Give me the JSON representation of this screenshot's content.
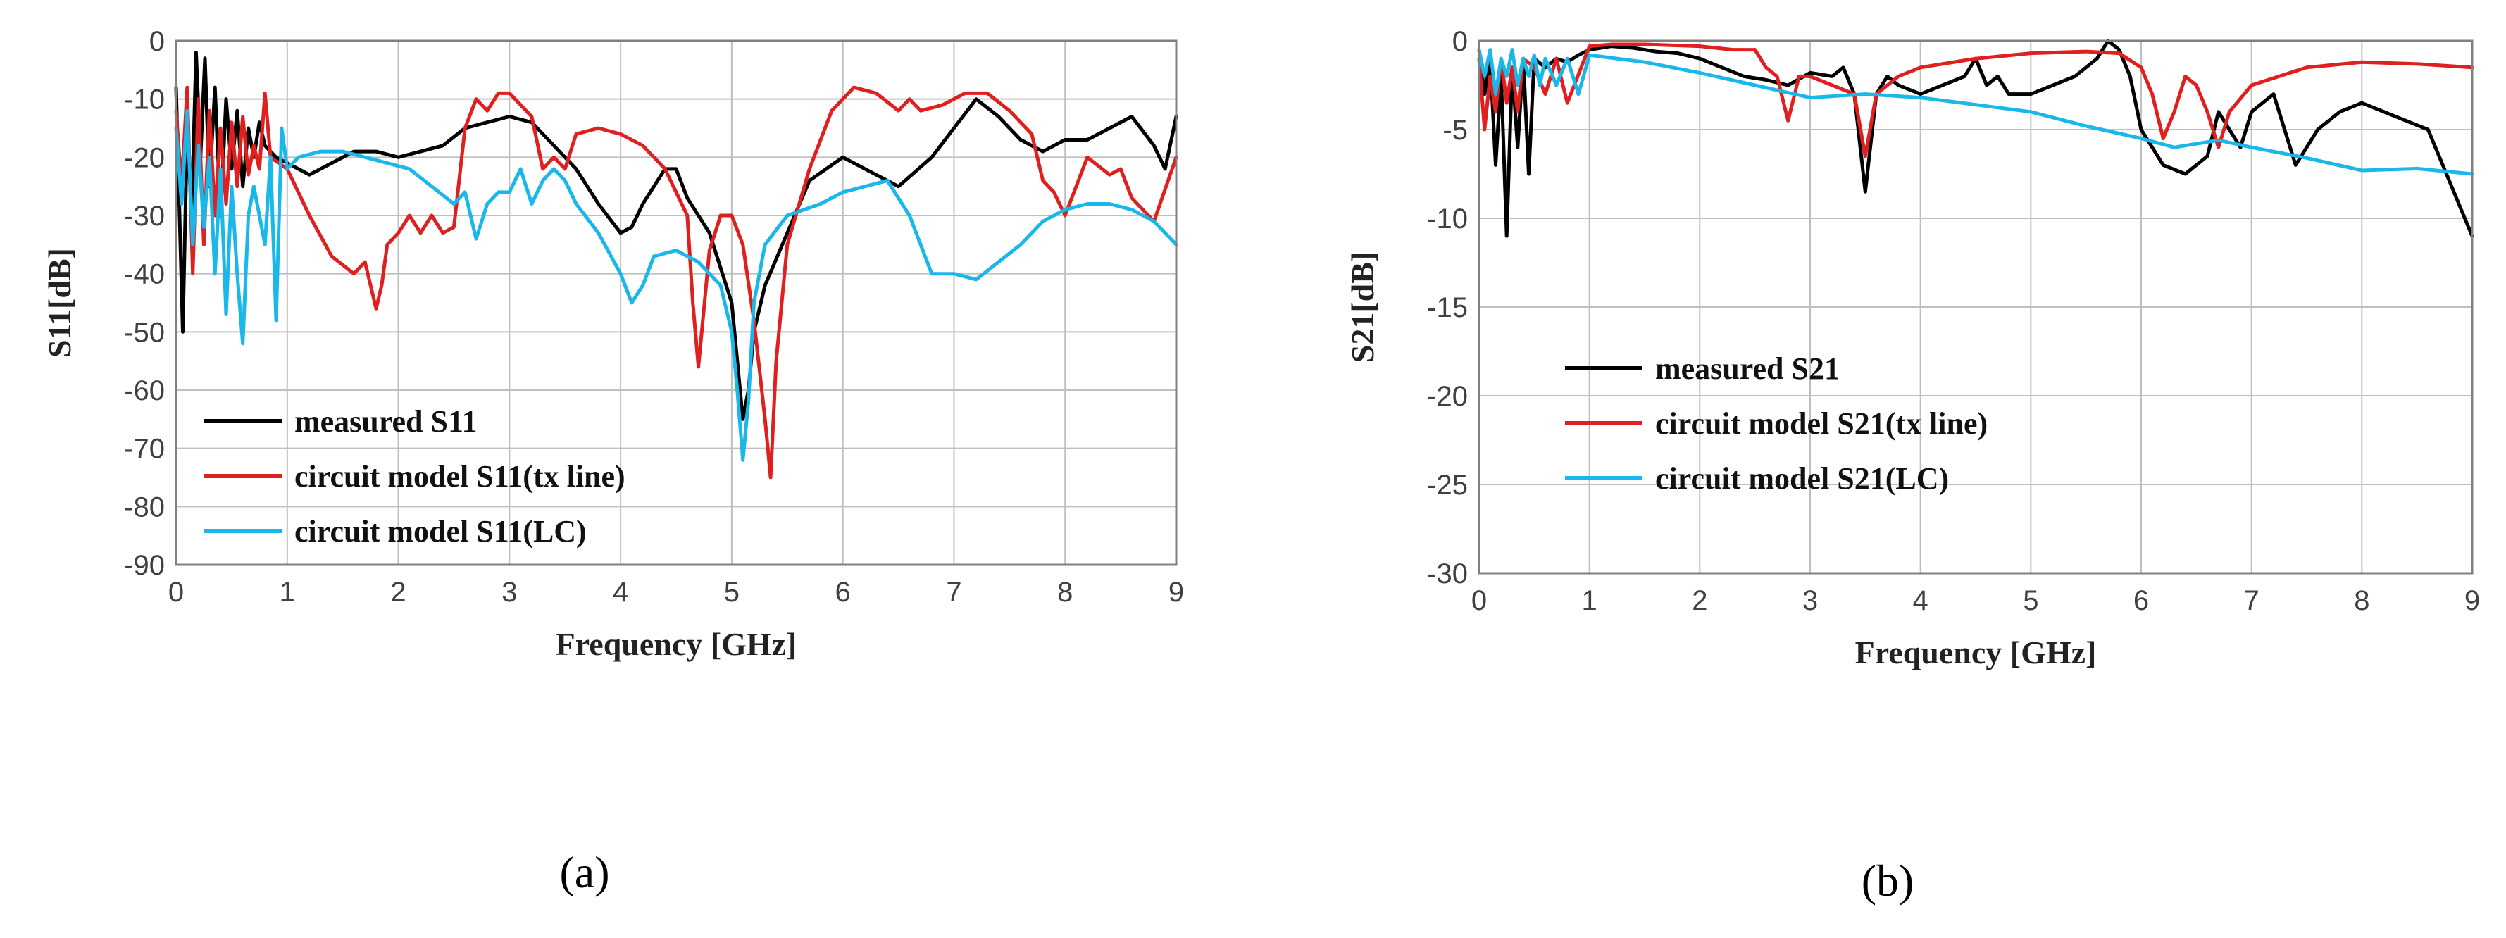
{
  "chart_data": [
    {
      "type": "line",
      "panel_label": "(a)",
      "xlabel": "Frequency [GHz]",
      "ylabel": "S11[dB]",
      "xlim": [
        0,
        9
      ],
      "ylim": [
        -90,
        0
      ],
      "xticks": [
        0,
        1,
        2,
        3,
        4,
        5,
        6,
        7,
        8,
        9
      ],
      "yticks": [
        0,
        -10,
        -20,
        -30,
        -40,
        -50,
        -60,
        -70,
        -80,
        -90
      ],
      "grid": true,
      "legend": "bottom-left",
      "series": [
        {
          "name": "measured S11",
          "color": "#000000",
          "x": [
            0,
            0.06,
            0.1,
            0.14,
            0.18,
            0.22,
            0.26,
            0.3,
            0.35,
            0.4,
            0.45,
            0.5,
            0.55,
            0.6,
            0.65,
            0.7,
            0.75,
            0.8,
            0.9,
            1.0,
            1.2,
            1.4,
            1.6,
            1.8,
            2.0,
            2.2,
            2.4,
            2.6,
            2.8,
            3.0,
            3.2,
            3.4,
            3.6,
            3.8,
            4.0,
            4.1,
            4.2,
            4.4,
            4.5,
            4.6,
            4.8,
            5.0,
            5.1,
            5.15,
            5.2,
            5.3,
            5.5,
            5.7,
            6.0,
            6.2,
            6.5,
            6.8,
            7.0,
            7.2,
            7.4,
            7.6,
            7.8,
            8.0,
            8.2,
            8.4,
            8.6,
            8.8,
            8.9,
            9.0
          ],
          "values": [
            -8,
            -50,
            -15,
            -30,
            -2,
            -20,
            -3,
            -25,
            -8,
            -30,
            -10,
            -22,
            -12,
            -25,
            -15,
            -20,
            -14,
            -18,
            -20,
            -21,
            -23,
            -21,
            -19,
            -19,
            -20,
            -19,
            -18,
            -15,
            -14,
            -13,
            -14,
            -18,
            -22,
            -28,
            -33,
            -32,
            -28,
            -22,
            -22,
            -27,
            -33,
            -45,
            -65,
            -60,
            -50,
            -42,
            -33,
            -24,
            -20,
            -22,
            -25,
            -20,
            -15,
            -10,
            -13,
            -17,
            -19,
            -17,
            -17,
            -15,
            -13,
            -18,
            -22,
            -13
          ]
        },
        {
          "name": "circuit model S11(tx line)",
          "color": "#e0201f",
          "x": [
            0,
            0.05,
            0.1,
            0.15,
            0.2,
            0.25,
            0.3,
            0.35,
            0.4,
            0.45,
            0.5,
            0.55,
            0.6,
            0.65,
            0.7,
            0.75,
            0.8,
            0.85,
            1.0,
            1.2,
            1.4,
            1.6,
            1.7,
            1.8,
            1.85,
            1.9,
            2.0,
            2.1,
            2.2,
            2.3,
            2.4,
            2.5,
            2.6,
            2.7,
            2.8,
            2.9,
            3.0,
            3.1,
            3.2,
            3.3,
            3.4,
            3.5,
            3.6,
            3.8,
            4.0,
            4.2,
            4.4,
            4.6,
            4.65,
            4.7,
            4.8,
            4.9,
            5.0,
            5.1,
            5.2,
            5.3,
            5.35,
            5.4,
            5.5,
            5.7,
            5.9,
            6.1,
            6.3,
            6.5,
            6.6,
            6.7,
            6.9,
            7.1,
            7.3,
            7.5,
            7.7,
            7.8,
            7.9,
            8.0,
            8.2,
            8.4,
            8.5,
            8.6,
            8.8,
            9.0
          ],
          "values": [
            -12,
            -25,
            -8,
            -40,
            -10,
            -35,
            -12,
            -30,
            -15,
            -28,
            -14,
            -25,
            -13,
            -23,
            -18,
            -22,
            -9,
            -20,
            -22,
            -30,
            -37,
            -40,
            -38,
            -46,
            -42,
            -35,
            -33,
            -30,
            -33,
            -30,
            -33,
            -32,
            -15,
            -10,
            -12,
            -9,
            -9,
            -11,
            -13,
            -22,
            -20,
            -22,
            -16,
            -15,
            -16,
            -18,
            -22,
            -30,
            -45,
            -56,
            -36,
            -30,
            -30,
            -35,
            -48,
            -65,
            -75,
            -55,
            -35,
            -22,
            -12,
            -8,
            -9,
            -12,
            -10,
            -12,
            -11,
            -9,
            -9,
            -12,
            -16,
            -24,
            -26,
            -30,
            -20,
            -23,
            -22,
            -27,
            -31,
            -20
          ]
        },
        {
          "name": "circuit model S11(LC)",
          "color": "#1ab8ea",
          "x": [
            0,
            0.05,
            0.1,
            0.15,
            0.2,
            0.25,
            0.3,
            0.35,
            0.4,
            0.45,
            0.5,
            0.55,
            0.6,
            0.65,
            0.7,
            0.8,
            0.85,
            0.9,
            0.95,
            1.0,
            1.1,
            1.3,
            1.5,
            1.7,
            1.9,
            2.1,
            2.3,
            2.5,
            2.6,
            2.7,
            2.8,
            2.9,
            3.0,
            3.1,
            3.2,
            3.3,
            3.4,
            3.5,
            3.6,
            3.8,
            4.0,
            4.1,
            4.2,
            4.3,
            4.5,
            4.7,
            4.9,
            5.0,
            5.05,
            5.1,
            5.15,
            5.2,
            5.3,
            5.5,
            5.8,
            6.0,
            6.2,
            6.4,
            6.6,
            6.8,
            7.0,
            7.2,
            7.4,
            7.6,
            7.8,
            8.0,
            8.2,
            8.4,
            8.6,
            8.8,
            9.0
          ],
          "values": [
            -15,
            -28,
            -12,
            -35,
            -18,
            -32,
            -20,
            -40,
            -22,
            -47,
            -25,
            -40,
            -52,
            -30,
            -25,
            -35,
            -20,
            -48,
            -15,
            -22,
            -20,
            -19,
            -19,
            -20,
            -21,
            -22,
            -25,
            -28,
            -26,
            -34,
            -28,
            -26,
            -26,
            -22,
            -28,
            -24,
            -22,
            -24,
            -28,
            -33,
            -40,
            -45,
            -42,
            -37,
            -36,
            -38,
            -42,
            -50,
            -60,
            -72,
            -62,
            -45,
            -35,
            -30,
            -28,
            -26,
            -25,
            -24,
            -30,
            -40,
            -40,
            -41,
            -38,
            -35,
            -31,
            -29,
            -28,
            -28,
            -29,
            -31,
            -35
          ]
        }
      ]
    },
    {
      "type": "line",
      "panel_label": "(b)",
      "xlabel": "Frequency [GHz]",
      "ylabel": "S21[dB]",
      "xlim": [
        0,
        9
      ],
      "ylim": [
        -30,
        0
      ],
      "xticks": [
        0,
        1,
        2,
        3,
        4,
        5,
        6,
        7,
        8,
        9
      ],
      "yticks": [
        0,
        -5,
        -10,
        -15,
        -20,
        -25,
        -30
      ],
      "grid": true,
      "legend": "center-left",
      "series": [
        {
          "name": "measured S21",
          "color": "#000000",
          "x": [
            0,
            0.05,
            0.1,
            0.15,
            0.2,
            0.25,
            0.3,
            0.35,
            0.4,
            0.45,
            0.5,
            0.6,
            0.7,
            0.8,
            0.9,
            1.0,
            1.2,
            1.4,
            1.6,
            1.8,
            2.0,
            2.2,
            2.4,
            2.6,
            2.8,
            3.0,
            3.2,
            3.3,
            3.4,
            3.5,
            3.6,
            3.7,
            3.8,
            4.0,
            4.2,
            4.4,
            4.5,
            4.6,
            4.7,
            4.8,
            5.0,
            5.2,
            5.4,
            5.6,
            5.7,
            5.8,
            5.9,
            6.0,
            6.2,
            6.4,
            6.5,
            6.6,
            6.7,
            6.8,
            6.9,
            7.0,
            7.2,
            7.4,
            7.6,
            7.8,
            8.0,
            8.2,
            8.4,
            8.6,
            8.8,
            8.9,
            9.0
          ],
          "values": [
            -0.5,
            -3,
            -1,
            -7,
            -2,
            -11,
            -1.5,
            -6,
            -1,
            -7.5,
            -1,
            -1.5,
            -1,
            -1.2,
            -0.8,
            -0.5,
            -0.3,
            -0.4,
            -0.6,
            -0.7,
            -1,
            -1.5,
            -2,
            -2.2,
            -2.5,
            -1.8,
            -2,
            -1.5,
            -3,
            -8.5,
            -3,
            -2,
            -2.5,
            -3,
            -2.5,
            -2,
            -1,
            -2.5,
            -2,
            -3,
            -3,
            -2.5,
            -2,
            -1,
            0,
            -0.5,
            -2,
            -5,
            -7,
            -7.5,
            -7,
            -6.5,
            -4,
            -5,
            -6,
            -4,
            -3,
            -7,
            -5,
            -4,
            -3.5,
            -4,
            -4.5,
            -5,
            -8,
            -9.5,
            -11
          ]
        },
        {
          "name": "circuit model S21(tx line)",
          "color": "#e0201f",
          "x": [
            0,
            0.05,
            0.1,
            0.15,
            0.2,
            0.25,
            0.3,
            0.35,
            0.4,
            0.5,
            0.6,
            0.7,
            0.8,
            1.0,
            1.2,
            1.5,
            2.0,
            2.3,
            2.5,
            2.6,
            2.7,
            2.8,
            2.9,
            3.0,
            3.2,
            3.4,
            3.5,
            3.6,
            3.8,
            4.0,
            4.5,
            5.0,
            5.5,
            5.8,
            6.0,
            6.1,
            6.2,
            6.3,
            6.4,
            6.5,
            6.6,
            6.7,
            6.8,
            7.0,
            7.5,
            8.0,
            8.5,
            9.0
          ],
          "values": [
            -1,
            -5,
            -2,
            -4,
            -1,
            -3.5,
            -1.5,
            -4,
            -1,
            -1.5,
            -3,
            -1,
            -3.5,
            -0.3,
            -0.2,
            -0.2,
            -0.3,
            -0.5,
            -0.5,
            -1.5,
            -2,
            -4.5,
            -2,
            -2,
            -2.5,
            -3,
            -6.5,
            -3,
            -2,
            -1.5,
            -1,
            -0.7,
            -0.6,
            -0.7,
            -1.5,
            -3,
            -5.5,
            -4,
            -2,
            -2.5,
            -4,
            -6,
            -4,
            -2.5,
            -1.5,
            -1.2,
            -1.3,
            -1.5
          ]
        },
        {
          "name": "circuit model S21(LC)",
          "color": "#1ab8ea",
          "x": [
            0,
            0.05,
            0.1,
            0.15,
            0.2,
            0.25,
            0.3,
            0.35,
            0.4,
            0.45,
            0.5,
            0.55,
            0.6,
            0.7,
            0.8,
            0.9,
            1.0,
            1.5,
            2.0,
            2.5,
            3.0,
            3.5,
            4.0,
            4.5,
            5.0,
            5.5,
            6.0,
            6.3,
            6.5,
            6.7,
            7.0,
            7.5,
            8.0,
            8.5,
            9.0
          ],
          "values": [
            -0.5,
            -2,
            -0.5,
            -3,
            -1,
            -2,
            -0.5,
            -2.5,
            -1,
            -2,
            -0.8,
            -2.5,
            -1,
            -2.5,
            -1,
            -3,
            -0.8,
            -1.2,
            -1.8,
            -2.5,
            -3.2,
            -3,
            -3.2,
            -3.6,
            -4,
            -4.8,
            -5.5,
            -6,
            -5.8,
            -5.6,
            -6,
            -6.6,
            -7.3,
            -7.2,
            -7.5
          ]
        }
      ]
    }
  ]
}
